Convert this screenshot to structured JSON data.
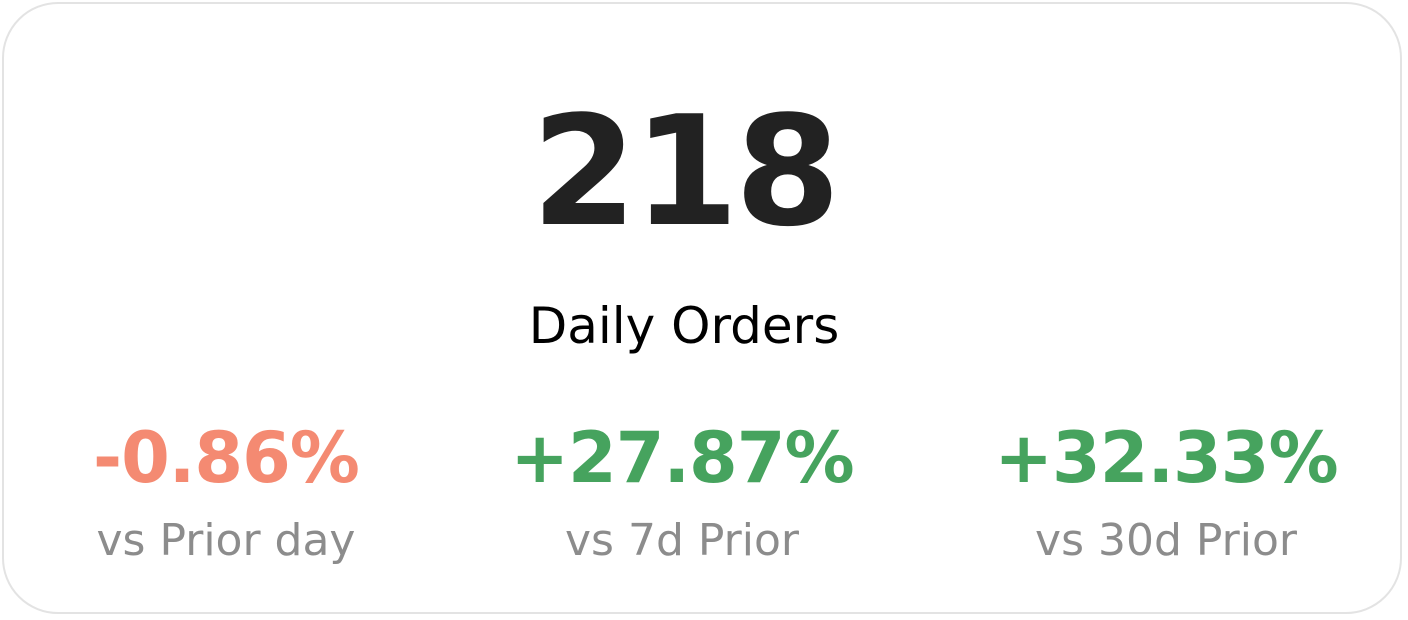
{
  "kpi": {
    "value": "218",
    "label": "Daily Orders"
  },
  "comparisons": [
    {
      "value": "-0.86%",
      "label": "vs Prior day",
      "trend": "negative",
      "color": "#f48a72"
    },
    {
      "value": "+27.87%",
      "label": "vs 7d Prior",
      "trend": "positive",
      "color": "#46a35e"
    },
    {
      "value": "+32.33%",
      "label": "vs 30d Prior",
      "trend": "positive",
      "color": "#46a35e"
    }
  ],
  "colors": {
    "primary_text": "#222222",
    "muted_text": "#8c8c8c",
    "card_border": "#e3e3e3"
  }
}
